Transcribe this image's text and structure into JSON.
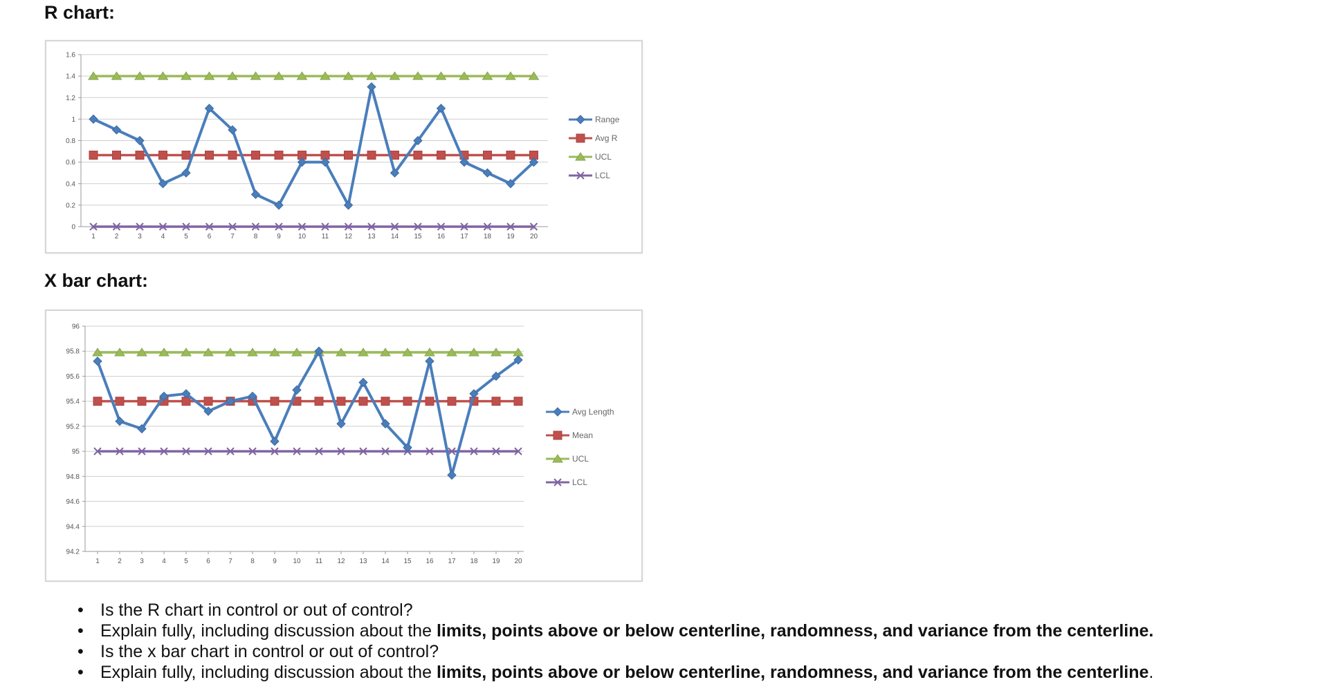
{
  "r_heading": "R chart:",
  "x_heading": "X bar chart:",
  "chart_data": [
    {
      "type": "line",
      "title": "",
      "xlabel": "",
      "ylabel": "",
      "x": [
        1,
        2,
        3,
        4,
        5,
        6,
        7,
        8,
        9,
        10,
        11,
        12,
        13,
        14,
        15,
        16,
        17,
        18,
        19,
        20
      ],
      "ylim": [
        0,
        1.6
      ],
      "yticks": [
        "0",
        "0.2",
        "0.4",
        "0.6",
        "0.8",
        "1",
        "1.2",
        "1.4",
        "1.6"
      ],
      "xticks": [
        "1",
        "2",
        "3",
        "4",
        "5",
        "6",
        "7",
        "8",
        "9",
        "10",
        "11",
        "12",
        "13",
        "14",
        "15",
        "16",
        "17",
        "18",
        "19",
        "20"
      ],
      "grid": true,
      "legend": "right",
      "series": [
        {
          "name": "Range",
          "color": "#4a7ebb",
          "marker": "diamond",
          "values": [
            1.0,
            0.9,
            0.8,
            0.4,
            0.5,
            1.1,
            0.9,
            0.3,
            0.2,
            0.6,
            0.6,
            0.2,
            1.3,
            0.5,
            0.8,
            1.1,
            0.6,
            0.5,
            0.4,
            0.6
          ]
        },
        {
          "name": "Avg R",
          "color": "#c0504d",
          "marker": "square",
          "values": [
            0.665,
            0.665,
            0.665,
            0.665,
            0.665,
            0.665,
            0.665,
            0.665,
            0.665,
            0.665,
            0.665,
            0.665,
            0.665,
            0.665,
            0.665,
            0.665,
            0.665,
            0.665,
            0.665,
            0.665
          ]
        },
        {
          "name": "UCL",
          "color": "#9bbb59",
          "marker": "triangle",
          "values": [
            1.4,
            1.4,
            1.4,
            1.4,
            1.4,
            1.4,
            1.4,
            1.4,
            1.4,
            1.4,
            1.4,
            1.4,
            1.4,
            1.4,
            1.4,
            1.4,
            1.4,
            1.4,
            1.4,
            1.4
          ]
        },
        {
          "name": "LCL",
          "color": "#8064a2",
          "marker": "x",
          "values": [
            0,
            0,
            0,
            0,
            0,
            0,
            0,
            0,
            0,
            0,
            0,
            0,
            0,
            0,
            0,
            0,
            0,
            0,
            0,
            0
          ]
        }
      ]
    },
    {
      "type": "line",
      "title": "",
      "xlabel": "",
      "ylabel": "",
      "x": [
        1,
        2,
        3,
        4,
        5,
        6,
        7,
        8,
        9,
        10,
        11,
        12,
        13,
        14,
        15,
        16,
        17,
        18,
        19,
        20
      ],
      "ylim": [
        94.2,
        96
      ],
      "yticks": [
        "94.2",
        "94.4",
        "94.6",
        "94.8",
        "95",
        "95.2",
        "95.4",
        "95.6",
        "95.8",
        "96"
      ],
      "xticks": [
        "1",
        "2",
        "3",
        "4",
        "5",
        "6",
        "7",
        "8",
        "9",
        "10",
        "11",
        "12",
        "13",
        "14",
        "15",
        "16",
        "17",
        "18",
        "19",
        "20"
      ],
      "grid": true,
      "legend": "right",
      "series": [
        {
          "name": "Avg Length",
          "color": "#4a7ebb",
          "marker": "diamond",
          "values": [
            95.72,
            95.24,
            95.18,
            95.44,
            95.46,
            95.32,
            95.4,
            95.44,
            95.08,
            95.49,
            95.8,
            95.22,
            95.55,
            95.22,
            95.03,
            95.72,
            94.81,
            95.46,
            95.6,
            95.73
          ]
        },
        {
          "name": "Mean",
          "color": "#c0504d",
          "marker": "square",
          "values": [
            95.4,
            95.4,
            95.4,
            95.4,
            95.4,
            95.4,
            95.4,
            95.4,
            95.4,
            95.4,
            95.4,
            95.4,
            95.4,
            95.4,
            95.4,
            95.4,
            95.4,
            95.4,
            95.4,
            95.4
          ]
        },
        {
          "name": "UCL",
          "color": "#9bbb59",
          "marker": "triangle",
          "values": [
            95.79,
            95.79,
            95.79,
            95.79,
            95.79,
            95.79,
            95.79,
            95.79,
            95.79,
            95.79,
            95.79,
            95.79,
            95.79,
            95.79,
            95.79,
            95.79,
            95.79,
            95.79,
            95.79,
            95.79
          ]
        },
        {
          "name": "LCL",
          "color": "#8064a2",
          "marker": "x",
          "values": [
            95.0,
            95.0,
            95.0,
            95.0,
            95.0,
            95.0,
            95.0,
            95.0,
            95.0,
            95.0,
            95.0,
            95.0,
            95.0,
            95.0,
            95.0,
            95.0,
            95.0,
            95.0,
            95.0,
            95.0
          ]
        }
      ]
    }
  ],
  "questions": [
    {
      "normal": "Is the R chart in control or out of control?",
      "bold": "",
      "tail": ""
    },
    {
      "normal": "Explain fully, including discussion about the ",
      "bold": "limits, points above or below centerline, randomness, and variance from the centerline.",
      "tail": ""
    },
    {
      "normal": "Is the x bar chart in control or out of control?",
      "bold": "",
      "tail": ""
    },
    {
      "normal": "Explain fully, including discussion about the ",
      "bold": "limits, points above or below centerline, randomness, and variance from the centerline",
      "tail": "."
    }
  ]
}
